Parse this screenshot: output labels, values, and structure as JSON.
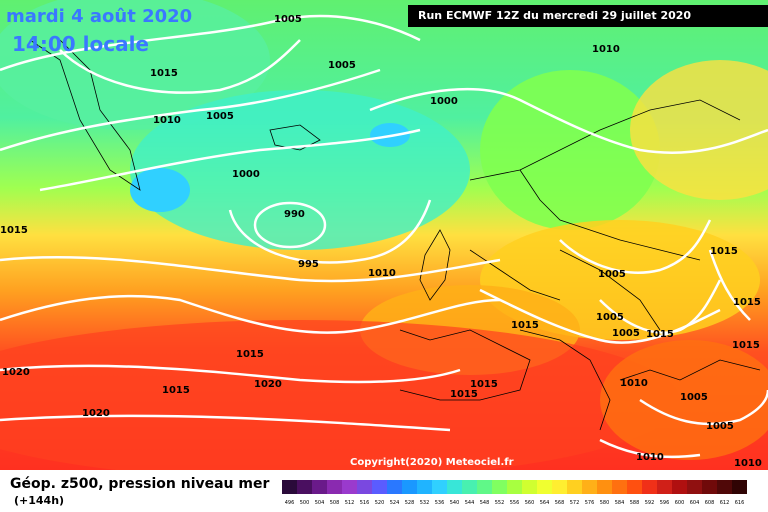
{
  "header": {
    "date": "mardi 4 août 2020",
    "time": "14:00 locale",
    "run": "Run ECMWF 12Z du mercredi 29 juillet 2020"
  },
  "footer": {
    "title": "Géop. z500, pression niveau mer",
    "lead": "(+144h)",
    "copyright": "Copyright(2020) Meteociel.fr"
  },
  "legend": {
    "ticks": [
      "496",
      "500",
      "504",
      "508",
      "512",
      "516",
      "520",
      "524",
      "528",
      "532",
      "536",
      "540",
      "544",
      "548",
      "552",
      "556",
      "560",
      "564",
      "568",
      "572",
      "576",
      "580",
      "584",
      "588",
      "592",
      "596",
      "600",
      "604",
      "608",
      "612",
      "616"
    ],
    "colors": [
      "#2a0a3a",
      "#4a0f60",
      "#6a1a8a",
      "#8a2ab0",
      "#9a3acd",
      "#7a48e0",
      "#5a5cff",
      "#2a78ff",
      "#1a98ff",
      "#20b4ff",
      "#30d0ff",
      "#38e6d8",
      "#48f0b0",
      "#60f888",
      "#80ff60",
      "#a8ff40",
      "#d0ff30",
      "#f0ff30",
      "#ffee30",
      "#ffd020",
      "#ffb018",
      "#ff9010",
      "#ff7010",
      "#ff5010",
      "#f03018",
      "#d02018",
      "#b01010",
      "#901010",
      "#700a0a",
      "#500808",
      "#300404"
    ]
  },
  "isobars": [
    "1005",
    "1010",
    "1015",
    "1005",
    "1010",
    "1005",
    "1000",
    "1000",
    "990",
    "995",
    "1010",
    "1015",
    "1015",
    "1015",
    "1010",
    "1005",
    "1005",
    "1005",
    "1015",
    "1015",
    "1020",
    "1020",
    "1015",
    "1020",
    "1015",
    "1015",
    "1015",
    "1010",
    "1005",
    "1005",
    "1010",
    "1015"
  ]
}
